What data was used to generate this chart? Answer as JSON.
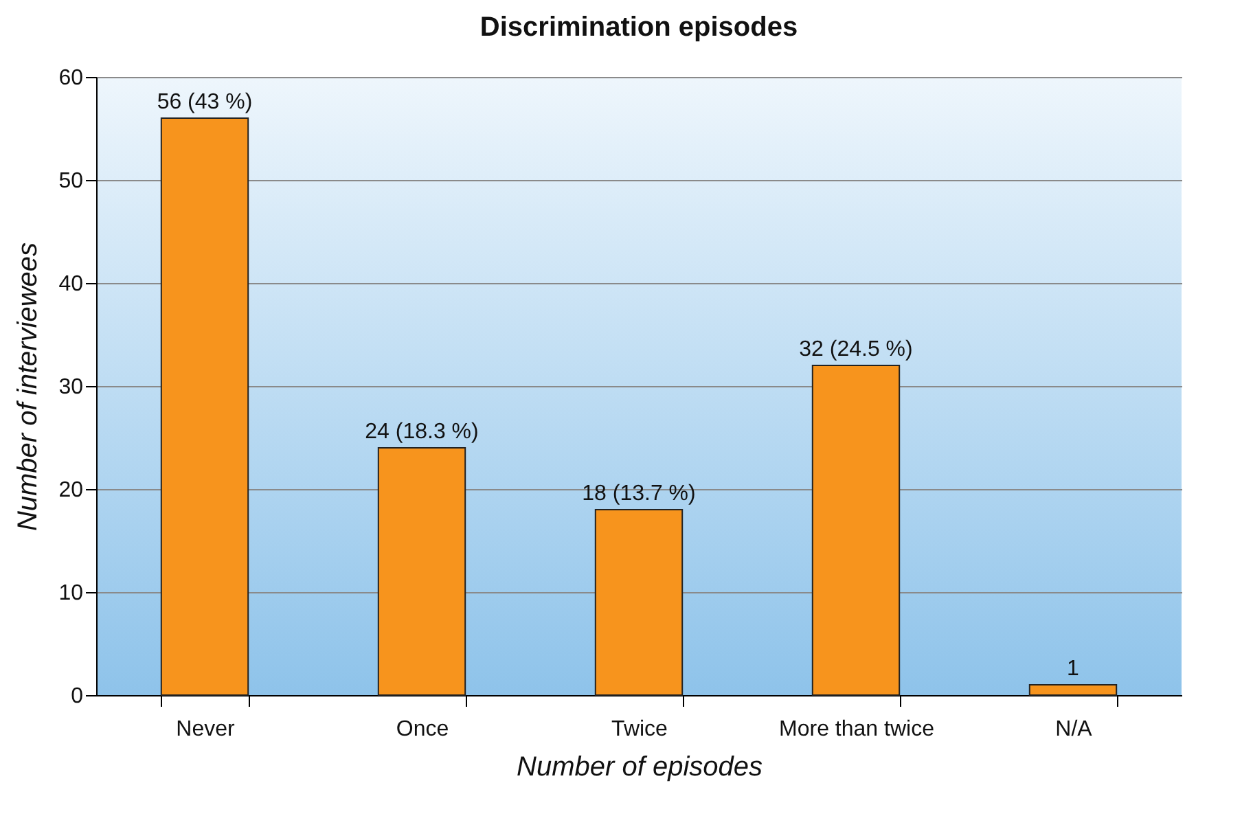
{
  "chart_data": {
    "type": "bar",
    "title": "Discrimination episodes",
    "xlabel": "Number of episodes",
    "ylabel": "Number of interviewees",
    "categories": [
      "Never",
      "Once",
      "Twice",
      "More than twice",
      "N/A"
    ],
    "values": [
      56,
      24,
      18,
      32,
      1
    ],
    "value_labels": [
      "56 (43 %)",
      "24 (18.3 %)",
      "18 (13.7 %)",
      "32 (24.5 %)",
      "1"
    ],
    "color": "#f7941d",
    "ylim": [
      0,
      60
    ],
    "yticks": [
      0,
      10,
      20,
      30,
      40,
      50,
      60
    ],
    "grid": "y"
  }
}
